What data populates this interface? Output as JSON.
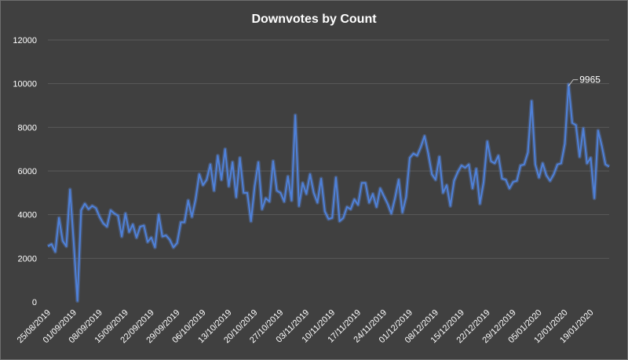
{
  "chart_data": {
    "type": "line",
    "title": "Downvotes by Count",
    "xlabel": "",
    "ylabel": "",
    "ylim": [
      0,
      12000
    ],
    "yticks": [
      0,
      2000,
      4000,
      6000,
      8000,
      10000,
      12000
    ],
    "grid": true,
    "legend": "none",
    "x_tick_labels": [
      "25/08/2019",
      "01/09/2019",
      "08/09/2019",
      "15/09/2019",
      "22/09/2019",
      "29/09/2019",
      "06/10/2019",
      "13/10/2019",
      "20/10/2019",
      "27/10/2019",
      "03/11/2019",
      "10/11/2019",
      "17/11/2019",
      "24/11/2019",
      "01/12/2019",
      "08/12/2019",
      "15/12/2019",
      "22/12/2019",
      "29/12/2019",
      "05/01/2020",
      "12/01/2020",
      "19/01/2020"
    ],
    "series": [
      {
        "color": "#4f81d9",
        "values": [
          2550,
          2650,
          2300,
          3850,
          2800,
          2550,
          5150,
          2700,
          50,
          4200,
          4500,
          4250,
          4400,
          4300,
          3900,
          3600,
          3450,
          4200,
          4050,
          3950,
          3000,
          4050,
          3200,
          3550,
          2950,
          3450,
          3500,
          2750,
          2950,
          2500,
          4000,
          3000,
          3050,
          2850,
          2500,
          2700,
          3650,
          3650,
          4650,
          3900,
          4700,
          5850,
          5350,
          5600,
          6300,
          5100,
          6700,
          5600,
          7000,
          5300,
          6400,
          4800,
          6600,
          5000,
          5000,
          3700,
          5300,
          6400,
          4250,
          4750,
          4600,
          6450,
          5100,
          5000,
          4600,
          5750,
          4650,
          8550,
          4400,
          5450,
          4950,
          5850,
          5000,
          4550,
          5650,
          4150,
          3800,
          3850,
          5700,
          3700,
          3850,
          4350,
          4250,
          4700,
          4450,
          5450,
          5450,
          4550,
          4950,
          4350,
          5200,
          4850,
          4500,
          4050,
          4750,
          5600,
          4100,
          4800,
          6600,
          6800,
          6700,
          7100,
          7600,
          6800,
          5850,
          5600,
          6650,
          5000,
          5350,
          4400,
          5550,
          5950,
          6250,
          6150,
          6300,
          5200,
          6100,
          4500,
          5500,
          7350,
          6450,
          6350,
          6700,
          5650,
          5600,
          5200,
          5500,
          5550,
          6250,
          6300,
          6850,
          9200,
          6300,
          5700,
          6350,
          5800,
          5550,
          5850,
          6300,
          6350,
          7250,
          9965,
          8200,
          8100,
          6650,
          7950,
          6350,
          6600,
          4750,
          7850,
          7150,
          6300,
          6200
        ]
      }
    ],
    "annotations": [
      {
        "index": 141,
        "text": "9965"
      }
    ]
  }
}
